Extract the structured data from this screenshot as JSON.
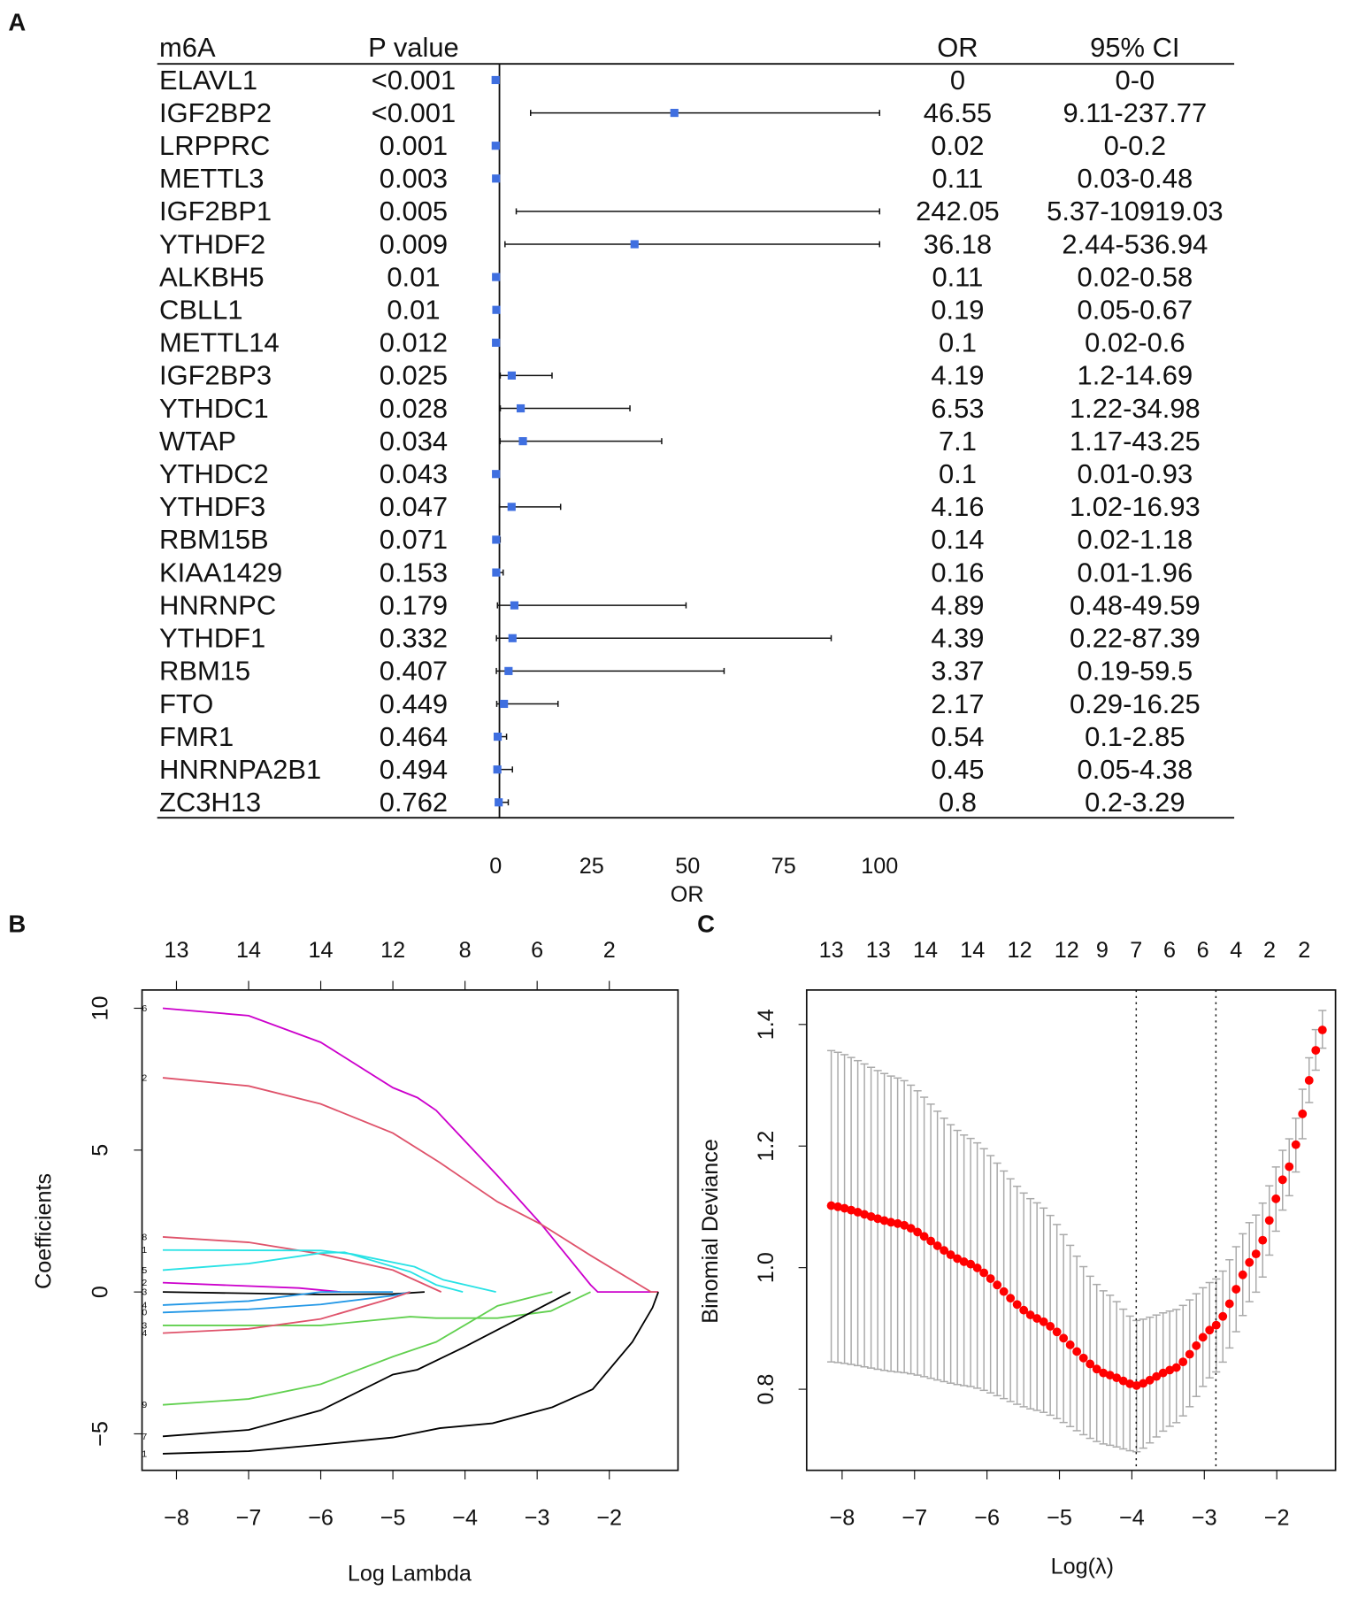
{
  "chart_data": [
    {
      "panel": "A",
      "type": "forest",
      "headers": {
        "gene": "m6A",
        "p": "P value",
        "or": "OR",
        "ci": "95% CI"
      },
      "xlabel": "OR",
      "xticks": [
        0,
        25,
        50,
        75,
        100
      ],
      "xlim": [
        0,
        100
      ],
      "reference_line": 1,
      "point_color": "#3F6FE0",
      "rows": [
        {
          "gene": "ELAVL1",
          "p": "<0.001",
          "or_text": "0",
          "ci_text": "0-0",
          "or": 0,
          "lo": 0,
          "hi": 0
        },
        {
          "gene": "IGF2BP2",
          "p": "<0.001",
          "or_text": "46.55",
          "ci_text": "9.11-237.77",
          "or": 46.55,
          "lo": 9.11,
          "hi": 237.77
        },
        {
          "gene": "LRPPRC",
          "p": "0.001",
          "or_text": "0.02",
          "ci_text": "0-0.2",
          "or": 0.02,
          "lo": 0,
          "hi": 0.2
        },
        {
          "gene": "METTL3",
          "p": "0.003",
          "or_text": "0.11",
          "ci_text": "0.03-0.48",
          "or": 0.11,
          "lo": 0.03,
          "hi": 0.48
        },
        {
          "gene": "IGF2BP1",
          "p": "0.005",
          "or_text": "242.05",
          "ci_text": "5.37-10919.03",
          "or": 242.05,
          "lo": 5.37,
          "hi": 10919.03
        },
        {
          "gene": "YTHDF2",
          "p": "0.009",
          "or_text": "36.18",
          "ci_text": "2.44-536.94",
          "or": 36.18,
          "lo": 2.44,
          "hi": 536.94
        },
        {
          "gene": "ALKBH5",
          "p": "0.01",
          "or_text": "0.11",
          "ci_text": "0.02-0.58",
          "or": 0.11,
          "lo": 0.02,
          "hi": 0.58
        },
        {
          "gene": "CBLL1",
          "p": "0.01",
          "or_text": "0.19",
          "ci_text": "0.05-0.67",
          "or": 0.19,
          "lo": 0.05,
          "hi": 0.67
        },
        {
          "gene": "METTL14",
          "p": "0.012",
          "or_text": "0.1",
          "ci_text": "0.02-0.6",
          "or": 0.1,
          "lo": 0.02,
          "hi": 0.6
        },
        {
          "gene": "IGF2BP3",
          "p": "0.025",
          "or_text": "4.19",
          "ci_text": "1.2-14.69",
          "or": 4.19,
          "lo": 1.2,
          "hi": 14.69
        },
        {
          "gene": "YTHDC1",
          "p": "0.028",
          "or_text": "6.53",
          "ci_text": "1.22-34.98",
          "or": 6.53,
          "lo": 1.22,
          "hi": 34.98
        },
        {
          "gene": "WTAP",
          "p": "0.034",
          "or_text": "7.1",
          "ci_text": "1.17-43.25",
          "or": 7.1,
          "lo": 1.17,
          "hi": 43.25
        },
        {
          "gene": "YTHDC2",
          "p": "0.043",
          "or_text": "0.1",
          "ci_text": "0.01-0.93",
          "or": 0.1,
          "lo": 0.01,
          "hi": 0.93
        },
        {
          "gene": "YTHDF3",
          "p": "0.047",
          "or_text": "4.16",
          "ci_text": "1.02-16.93",
          "or": 4.16,
          "lo": 1.02,
          "hi": 16.93
        },
        {
          "gene": "RBM15B",
          "p": "0.071",
          "or_text": "0.14",
          "ci_text": "0.02-1.18",
          "or": 0.14,
          "lo": 0.02,
          "hi": 1.18
        },
        {
          "gene": "KIAA1429",
          "p": "0.153",
          "or_text": "0.16",
          "ci_text": "0.01-1.96",
          "or": 0.16,
          "lo": 0.01,
          "hi": 1.96
        },
        {
          "gene": "HNRNPC",
          "p": "0.179",
          "or_text": "4.89",
          "ci_text": "0.48-49.59",
          "or": 4.89,
          "lo": 0.48,
          "hi": 49.59
        },
        {
          "gene": "YTHDF1",
          "p": "0.332",
          "or_text": "4.39",
          "ci_text": "0.22-87.39",
          "or": 4.39,
          "lo": 0.22,
          "hi": 87.39
        },
        {
          "gene": "RBM15",
          "p": "0.407",
          "or_text": "3.37",
          "ci_text": "0.19-59.5",
          "or": 3.37,
          "lo": 0.19,
          "hi": 59.5
        },
        {
          "gene": "FTO",
          "p": "0.449",
          "or_text": "2.17",
          "ci_text": "0.29-16.25",
          "or": 2.17,
          "lo": 0.29,
          "hi": 16.25
        },
        {
          "gene": "FMR1",
          "p": "0.464",
          "or_text": "0.54",
          "ci_text": "0.1-2.85",
          "or": 0.54,
          "lo": 0.1,
          "hi": 2.85
        },
        {
          "gene": "HNRNPA2B1",
          "p": "0.494",
          "or_text": "0.45",
          "ci_text": "0.05-4.38",
          "or": 0.45,
          "lo": 0.05,
          "hi": 4.38
        },
        {
          "gene": "ZC3H13",
          "p": "0.762",
          "or_text": "0.8",
          "ci_text": "0.2-3.29",
          "or": 0.8,
          "lo": 0.2,
          "hi": 3.29
        }
      ]
    },
    {
      "panel": "B",
      "type": "line",
      "xlabel": "Log Lambda",
      "ylabel": "Coefficients",
      "xticks": [
        -8,
        -7,
        -6,
        -5,
        -4,
        -3,
        -2
      ],
      "yticks": [
        10,
        5,
        0,
        -5
      ],
      "top_ticks": [
        {
          "x": -8,
          "label": "13"
        },
        {
          "x": -7,
          "label": "14"
        },
        {
          "x": -6,
          "label": "14"
        },
        {
          "x": -5,
          "label": "12"
        },
        {
          "x": -4,
          "label": "8"
        },
        {
          "x": -3,
          "label": "6"
        },
        {
          "x": -2,
          "label": "2"
        }
      ],
      "xlim": [
        -8.5,
        -1.0
      ],
      "ylim": [
        -6.1,
        10.8
      ],
      "series": [
        {
          "label": "6",
          "color": "#CC00CC",
          "points": [
            [
              -8.19,
              10
            ],
            [
              -7,
              9.74
            ],
            [
              -6,
              8.8
            ],
            [
              -5,
              7.2
            ],
            [
              -4.66,
              6.85
            ],
            [
              -4.4,
              6.4
            ],
            [
              -3.55,
              4.1
            ],
            [
              -2.94,
              2.38
            ],
            [
              -2.26,
              0.25
            ],
            [
              -2.16,
              0
            ],
            [
              -1.32,
              0
            ]
          ]
        },
        {
          "label": "2",
          "color": "#DF536B",
          "points": [
            [
              -8.19,
              7.55
            ],
            [
              -7,
              7.26
            ],
            [
              -6,
              6.63
            ],
            [
              -5,
              5.6
            ],
            [
              -4.35,
              4.56
            ],
            [
              -3.55,
              3.18
            ],
            [
              -2.94,
              2.38
            ],
            [
              -2.26,
              1.29
            ],
            [
              -1.42,
              0
            ],
            [
              -1.32,
              0
            ]
          ]
        },
        {
          "label": "8",
          "color": "#DF536B",
          "points": [
            [
              -8.19,
              1.94
            ],
            [
              -7,
              1.75
            ],
            [
              -6,
              1.34
            ],
            [
              -5,
              0.77
            ],
            [
              -4.33,
              0
            ]
          ]
        },
        {
          "label": "1",
          "color": "#28E2E5",
          "points": [
            [
              -8.19,
              1.48
            ],
            [
              -6,
              1.46
            ],
            [
              -5.57,
              1.34
            ],
            [
              -4.7,
              0.89
            ],
            [
              -4.3,
              0.43
            ],
            [
              -3.57,
              0
            ]
          ]
        },
        {
          "label": "5",
          "color": "#28E2E5",
          "points": [
            [
              -8.19,
              0.77
            ],
            [
              -7,
              1.0
            ],
            [
              -6,
              1.37
            ],
            [
              -5.67,
              1.4
            ],
            [
              -4.76,
              0.71
            ],
            [
              -4.4,
              0.25
            ],
            [
              -4.03,
              0
            ]
          ]
        },
        {
          "label": "2",
          "color": "#CC00CC",
          "points": [
            [
              -8.19,
              0.33
            ],
            [
              -6.3,
              0.14
            ],
            [
              -5.72,
              0
            ]
          ]
        },
        {
          "label": "3",
          "color": "#000000",
          "points": [
            [
              -8.19,
              0
            ],
            [
              -6,
              -0.09
            ],
            [
              -5,
              -0.07
            ],
            [
              -4.56,
              0
            ]
          ]
        },
        {
          "label": "4",
          "color": "#2297E6",
          "points": [
            [
              -8.19,
              -0.46
            ],
            [
              -7,
              -0.32
            ],
            [
              -6,
              0
            ],
            [
              -5,
              0
            ]
          ]
        },
        {
          "label": "0",
          "color": "#2297E6",
          "points": [
            [
              -8.19,
              -0.72
            ],
            [
              -7,
              -0.61
            ],
            [
              -6,
              -0.44
            ],
            [
              -5,
              -0.13
            ],
            [
              -4.76,
              0
            ]
          ]
        },
        {
          "label": "3",
          "color": "#61D04F",
          "points": [
            [
              -8.19,
              -1.18
            ],
            [
              -6,
              -1.18
            ],
            [
              -4.76,
              -0.87
            ],
            [
              -4.4,
              -0.92
            ],
            [
              -3.55,
              -0.92
            ],
            [
              -2.81,
              -0.67
            ],
            [
              -2.26,
              0
            ]
          ]
        },
        {
          "label": "4",
          "color": "#DF536B",
          "points": [
            [
              -8.19,
              -1.45
            ],
            [
              -7,
              -1.3
            ],
            [
              -6,
              -0.95
            ],
            [
              -5,
              -0.21
            ],
            [
              -4.76,
              0
            ]
          ]
        },
        {
          "label": "9",
          "color": "#61D04F",
          "points": [
            [
              -8.19,
              -3.98
            ],
            [
              -7,
              -3.77
            ],
            [
              -6,
              -3.25
            ],
            [
              -5,
              -2.28
            ],
            [
              -4.4,
              -1.76
            ],
            [
              -3.55,
              -0.49
            ],
            [
              -2.79,
              0
            ]
          ]
        },
        {
          "label": "7",
          "color": "#000000",
          "points": [
            [
              -8.19,
              -5.09
            ],
            [
              -7,
              -4.86
            ],
            [
              -6,
              -4.17
            ],
            [
              -5,
              -2.91
            ],
            [
              -4.66,
              -2.74
            ],
            [
              -4,
              -1.93
            ],
            [
              -3,
              -0.61
            ],
            [
              -2.54,
              0
            ]
          ]
        },
        {
          "label": "1",
          "color": "#000000",
          "points": [
            [
              -8.19,
              -5.7
            ],
            [
              -7,
              -5.61
            ],
            [
              -6,
              -5.38
            ],
            [
              -5,
              -5.13
            ],
            [
              -4.35,
              -4.8
            ],
            [
              -3.62,
              -4.63
            ],
            [
              -2.79,
              -4.06
            ],
            [
              -2.23,
              -3.43
            ],
            [
              -1.68,
              -1.76
            ],
            [
              -1.4,
              -0.55
            ],
            [
              -1.32,
              0
            ]
          ]
        }
      ]
    },
    {
      "panel": "C",
      "type": "scatter",
      "xlabel": "Log(λ)",
      "ylabel": "Binomial Deviance",
      "xticks": [
        -8,
        -7,
        -6,
        -5,
        -4,
        -3,
        -2
      ],
      "yticks": [
        0.8,
        1.0,
        1.2,
        1.4
      ],
      "xlim": [
        -8.5,
        -1.2
      ],
      "ylim": [
        0.66,
        1.46
      ],
      "point_color": "#FF0000",
      "errorbar_color": "#AAAAAA",
      "vlines": [
        -3.94,
        -2.84
      ],
      "top_ticks": [
        {
          "x": -8.15,
          "label": "13"
        },
        {
          "x": -7.5,
          "label": "13"
        },
        {
          "x": -6.85,
          "label": "14"
        },
        {
          "x": -6.2,
          "label": "14"
        },
        {
          "x": -5.55,
          "label": "12"
        },
        {
          "x": -4.9,
          "label": "12"
        },
        {
          "x": -4.41,
          "label": "9"
        },
        {
          "x": -3.94,
          "label": "7"
        },
        {
          "x": -3.48,
          "label": "6"
        },
        {
          "x": -3.02,
          "label": "6"
        },
        {
          "x": -2.56,
          "label": "4"
        },
        {
          "x": -2.1,
          "label": "2"
        },
        {
          "x": -1.62,
          "label": "2"
        }
      ],
      "n_points": 75,
      "lambda_range": [
        -8.15,
        -1.37
      ],
      "knots": [
        {
          "x": -8.15,
          "mean": 1.102,
          "lower": 0.845,
          "upper": 1.357
        },
        {
          "x": -7.2,
          "mean": 1.072,
          "lower": 0.828,
          "upper": 1.311
        },
        {
          "x": -6.25,
          "mean": 1.007,
          "lower": 0.805,
          "upper": 1.214
        },
        {
          "x": -5.3,
          "mean": 0.916,
          "lower": 0.765,
          "upper": 1.106
        },
        {
          "x": -4.36,
          "mean": 0.825,
          "lower": 0.709,
          "upper": 0.959
        },
        {
          "x": -3.94,
          "mean": 0.806,
          "lower": 0.697,
          "upper": 0.913
        },
        {
          "x": -3.41,
          "mean": 0.834,
          "lower": 0.743,
          "upper": 0.93
        },
        {
          "x": -2.84,
          "mean": 0.905,
          "lower": 0.828,
          "upper": 0.981
        },
        {
          "x": -2.29,
          "mean": 1.022,
          "lower": 0.959,
          "upper": 1.086
        },
        {
          "x": -1.84,
          "mean": 1.163,
          "lower": 1.115,
          "upper": 1.209
        },
        {
          "x": -1.37,
          "mean": 1.391,
          "lower": 1.361,
          "upper": 1.423
        }
      ]
    }
  ],
  "labels": {
    "a": "A",
    "b": "B",
    "c": "C"
  }
}
